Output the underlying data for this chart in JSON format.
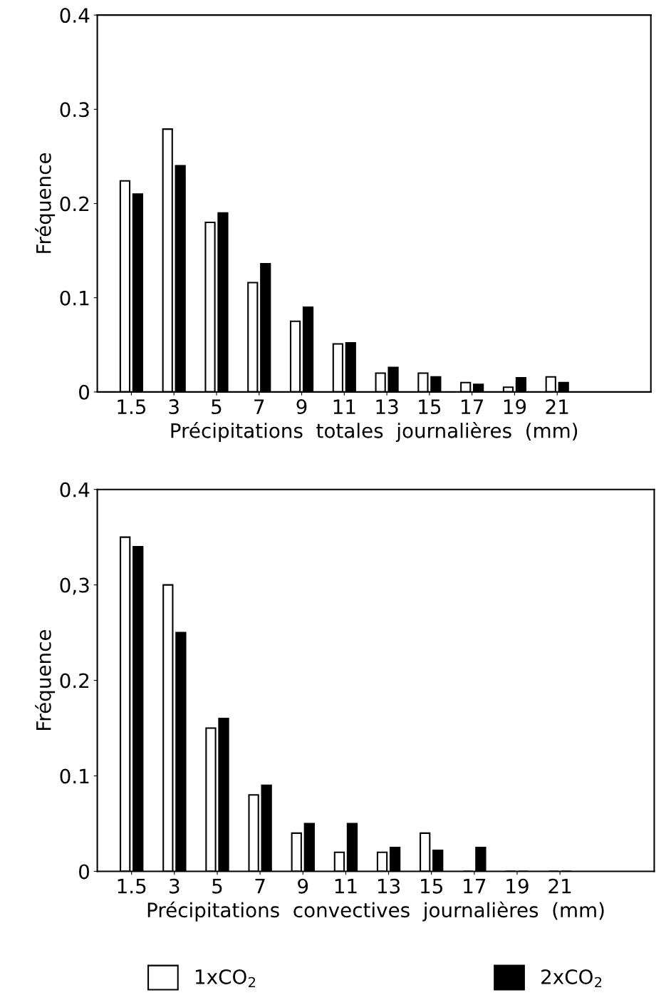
{
  "chart_data": [
    {
      "type": "bar",
      "xlabel": "Précipitations  totales  journalières  (mm)",
      "ylabel": "Fréquence",
      "categories": [
        "1.5",
        "3",
        "5",
        "7",
        "9",
        "11",
        "13",
        "15",
        "17",
        "19",
        "21"
      ],
      "series": [
        {
          "color": "#ffffff",
          "values": [
            0.224,
            0.279,
            0.18,
            0.116,
            0.075,
            0.051,
            0.02,
            0.02,
            0.01,
            0.005,
            0.016
          ]
        },
        {
          "color": "#000000",
          "values": [
            0.21,
            0.24,
            0.19,
            0.136,
            0.09,
            0.052,
            0.026,
            0.016,
            0.008,
            0.015,
            0.01
          ]
        }
      ],
      "ylim": [
        0,
        0.4
      ],
      "yticks": [
        0,
        0.1,
        0.2,
        0.3,
        0.4
      ],
      "grid": false,
      "legend": false
    },
    {
      "type": "bar",
      "xlabel": "Précipitations  convectives  journalières  (mm)",
      "ylabel": "Fréquence",
      "categories": [
        "1.5",
        "3",
        "5",
        "7",
        "9",
        "11",
        "13",
        "15",
        "17",
        "19",
        "21"
      ],
      "series": [
        {
          "name": "1xCO$_{2}$",
          "color": "#ffffff",
          "values": [
            0.35,
            0.3,
            0.15,
            0.08,
            0.04,
            0.02,
            0.02,
            0.04,
            0,
            0,
            0
          ]
        },
        {
          "name": "2xCO$_{2}$",
          "color": "#000000",
          "values": [
            0.34,
            0.25,
            0.16,
            0.09,
            0.05,
            0.05,
            0.025,
            0.022,
            0.025,
            0,
            0
          ]
        }
      ],
      "ylim": [
        0,
        0.4
      ],
      "yticks": [
        0,
        0.1,
        0.2,
        {
          "value": 0.3,
          "label": "0,3"
        },
        0.4
      ],
      "grid": false,
      "legend": "bottom"
    }
  ]
}
